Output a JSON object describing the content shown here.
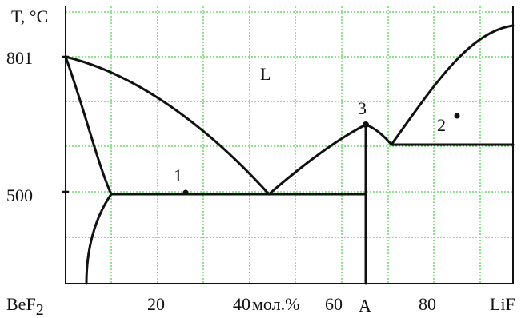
{
  "axis": {
    "y_label": "T, °C",
    "y_ticks": [
      "801",
      "500"
    ],
    "x_left": "BeF",
    "x_left_sub": "2",
    "x_right": "LiF",
    "x_ticks": [
      "20",
      "40",
      "60",
      "80"
    ],
    "x_unit": "мол.%",
    "compound": "A"
  },
  "regions": {
    "liquid": "L"
  },
  "points": [
    "1",
    "2",
    "3"
  ],
  "colors": {
    "grid": "#22c322",
    "lines": "#111111"
  }
}
